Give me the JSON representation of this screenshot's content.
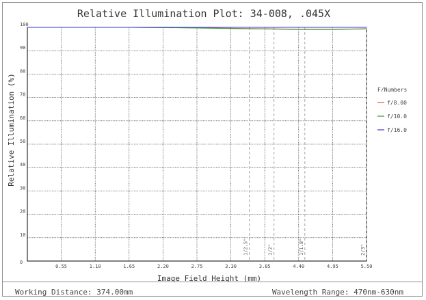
{
  "chart_data": {
    "type": "line",
    "title": "Relative Illumination Plot: 34-008, .045X",
    "xlabel": "Image Field Height (mm)",
    "ylabel": "Relative Illumination (%)",
    "xlim": [
      0,
      5.5
    ],
    "ylim": [
      0,
      100
    ],
    "x_ticks": [
      "0.55",
      "1.10",
      "1.65",
      "2.20",
      "2.75",
      "3.30",
      "3.85",
      "4.40",
      "4.95",
      "5.50"
    ],
    "y_ticks": [
      "0",
      "10",
      "20",
      "30",
      "40",
      "50",
      "60",
      "70",
      "80",
      "90",
      "100"
    ],
    "grid": true,
    "legend_title": "F/Numbers",
    "legend_position": "right",
    "series": [
      {
        "name": "f/8.00",
        "color": "#e05050",
        "x": [
          0,
          0.55,
          1.1,
          1.65,
          2.2,
          2.75,
          3.3,
          3.85,
          4.4,
          4.95,
          5.5
        ],
        "y": [
          100,
          100,
          100,
          100,
          99.9,
          99.8,
          99.6,
          99.4,
          99.2,
          99.2,
          99.4
        ]
      },
      {
        "name": "f/10.0",
        "color": "#2e9a2e",
        "x": [
          0,
          0.55,
          1.1,
          1.65,
          2.2,
          2.75,
          3.3,
          3.85,
          4.4,
          4.95,
          5.5
        ],
        "y": [
          100,
          100,
          100,
          100,
          99.9,
          99.7,
          99.5,
          99.3,
          99.1,
          99.1,
          99.3
        ]
      },
      {
        "name": "f/16.0",
        "color": "#3a3ad0",
        "x": [
          0,
          0.55,
          1.1,
          1.65,
          2.2,
          2.75,
          3.3,
          3.85,
          4.4,
          4.95,
          5.5
        ],
        "y": [
          100,
          100,
          100,
          100,
          100,
          100,
          100,
          100,
          100,
          100,
          100
        ]
      }
    ],
    "sensor_markers": [
      {
        "label": "1/2.5\"",
        "x": 3.6
      },
      {
        "label": "1/2\"",
        "x": 4.0
      },
      {
        "label": "1/1.8\"",
        "x": 4.5
      },
      {
        "label": "2/3\"",
        "x": 5.5
      }
    ],
    "marker_color": "#9a9a9a"
  },
  "footer": {
    "working_distance": "Working Distance: 374.00mm",
    "wavelength_range": "Wavelength Range: 470nm-630nm"
  }
}
